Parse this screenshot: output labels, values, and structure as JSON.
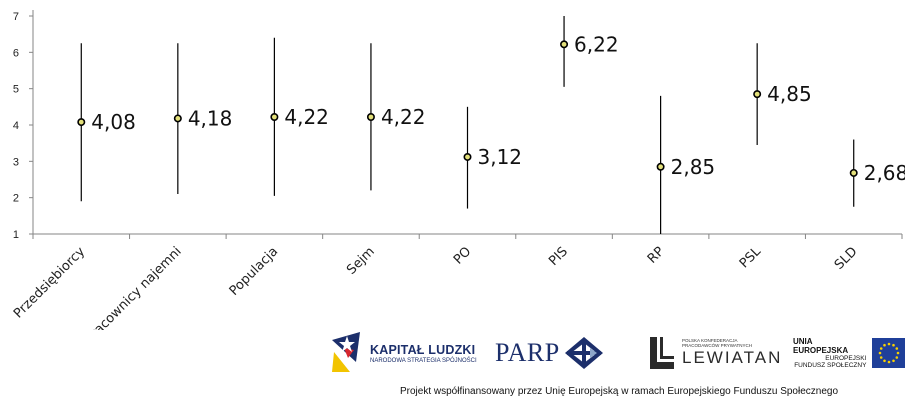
{
  "chart_data": {
    "type": "scatter",
    "error_bars": true,
    "categories": [
      "Przedsiębiorcy",
      "Pracownicy najemni",
      "Populacja",
      "Sejm",
      "PO",
      "PIS",
      "RP",
      "PSL",
      "SLD"
    ],
    "values": [
      4.08,
      4.18,
      4.22,
      4.22,
      3.12,
      6.22,
      2.85,
      4.85,
      2.68
    ],
    "labels": [
      "4,08",
      "4,18",
      "4,22",
      "4,22",
      "3,12",
      "6,22",
      "2,85",
      "4,85",
      "2,68"
    ],
    "low": [
      1.9,
      2.1,
      2.05,
      2.2,
      1.7,
      5.05,
      1.0,
      3.45,
      1.75
    ],
    "high": [
      6.25,
      6.25,
      6.4,
      6.25,
      4.5,
      7.0,
      4.8,
      6.25,
      3.6
    ],
    "ylim": [
      1,
      7
    ],
    "yticks": [
      "1",
      "2",
      "3",
      "4",
      "5",
      "6",
      "7"
    ],
    "title": "",
    "xlabel": "",
    "ylabel": "",
    "grid": false,
    "marker_color": "#e3e07a",
    "line_color": "#000000"
  },
  "logos": {
    "kapital_name": "KAPITAŁ LUDZKI",
    "kapital_sub": "NARODOWA STRATEGIA SPÓJNOŚCI",
    "parp_name": "PARP",
    "lewiatan_small": "POLSKA KONFEDERACJA PRACODAWCÓW PRYWATNYCH",
    "lewiatan_name": "LEWIATAN",
    "ue_line1": "UNIA EUROPEJSKA",
    "ue_line2": "EUROPEJSKI",
    "ue_line3": "FUNDUSZ SPOŁECZNY"
  },
  "footer": "Projekt współfinansowany przez Unię Europejską w ramach Europejskiego Funduszu Społecznego"
}
